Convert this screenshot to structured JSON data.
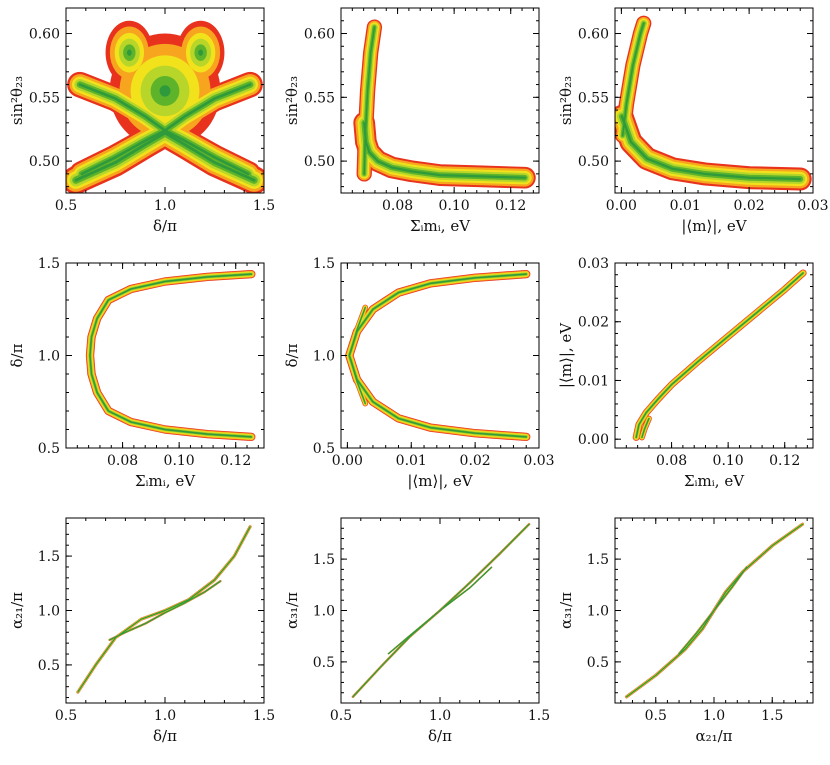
{
  "figure": {
    "description_colors": {
      "outer": "#e8321e",
      "mid1": "#f7a51f",
      "mid2": "#f2e21b",
      "inner": "#b8d62a",
      "core": "#5db42a",
      "center": "#2f9a3c"
    }
  },
  "chart_data": [
    {
      "type": "density",
      "id": "p11",
      "xlabel": "δ/π",
      "ylabel": "sin²θ₂₃",
      "xlim": [
        0.5,
        1.5
      ],
      "ylim": [
        0.475,
        0.62
      ],
      "xticks": [
        0.5,
        1.0,
        1.5
      ],
      "yticks": [
        0.5,
        0.55,
        0.6
      ],
      "xtick_labels": [
        "0.5",
        "1.0",
        "1.5"
      ],
      "ytick_labels": [
        "0.50",
        "0.55",
        "0.60"
      ],
      "bands": [
        {
          "pts": [
            [
              0.55,
              0.485
            ],
            [
              0.75,
              0.499
            ],
            [
              0.9,
              0.513
            ],
            [
              1.0,
              0.522
            ],
            [
              1.1,
              0.513
            ],
            [
              1.25,
              0.499
            ],
            [
              1.45,
              0.485
            ]
          ],
          "w": 0.022
        },
        {
          "pts": [
            [
              0.58,
              0.49
            ],
            [
              0.75,
              0.503
            ],
            [
              0.9,
              0.516
            ],
            [
              1.0,
              0.524
            ],
            [
              1.1,
              0.535
            ],
            [
              1.25,
              0.549
            ],
            [
              1.43,
              0.56
            ]
          ],
          "w": 0.02
        },
        {
          "pts": [
            [
              0.57,
              0.56
            ],
            [
              0.75,
              0.549
            ],
            [
              0.9,
              0.535
            ],
            [
              1.0,
              0.524
            ],
            [
              1.1,
              0.516
            ],
            [
              1.25,
              0.503
            ],
            [
              1.42,
              0.49
            ]
          ],
          "w": 0.02
        }
      ],
      "blobs": [
        {
          "cx": 1.0,
          "cy": 0.555,
          "rx": 0.28,
          "ry": 0.045
        },
        {
          "cx": 0.82,
          "cy": 0.585,
          "rx": 0.12,
          "ry": 0.025
        },
        {
          "cx": 1.18,
          "cy": 0.585,
          "rx": 0.12,
          "ry": 0.025
        }
      ]
    },
    {
      "type": "density",
      "id": "p12",
      "xlabel": "Σ_i m_i, eV",
      "ylabel": "sin²θ₂₃",
      "xlim": [
        0.06,
        0.13
      ],
      "ylim": [
        0.475,
        0.62
      ],
      "xticks": [
        0.08,
        0.1,
        0.12
      ],
      "yticks": [
        0.5,
        0.55,
        0.6
      ],
      "xtick_labels": [
        "0.08",
        "0.10",
        "0.12"
      ],
      "ytick_labels": [
        "0.50",
        "0.55",
        "0.60"
      ],
      "bands": [
        {
          "pts": [
            [
              0.0682,
              0.49
            ],
            [
              0.0686,
              0.52
            ],
            [
              0.0694,
              0.555
            ],
            [
              0.0705,
              0.585
            ],
            [
              0.0718,
              0.605
            ]
          ],
          "w": 0.012
        },
        {
          "pts": [
            [
              0.0682,
              0.53
            ],
            [
              0.0688,
              0.515
            ],
            [
              0.07,
              0.507
            ],
            [
              0.073,
              0.5
            ],
            [
              0.078,
              0.495
            ],
            [
              0.085,
              0.492
            ],
            [
              0.095,
              0.489
            ],
            [
              0.11,
              0.488
            ],
            [
              0.125,
              0.487
            ]
          ],
          "w": 0.017
        }
      ],
      "blobs": []
    },
    {
      "type": "density",
      "id": "p13",
      "xlabel": "|⟨m⟩|, eV",
      "ylabel": "sin²θ₂₃",
      "xlim": [
        -0.001,
        0.03
      ],
      "ylim": [
        0.475,
        0.62
      ],
      "xticks": [
        0.0,
        0.01,
        0.02,
        0.03
      ],
      "yticks": [
        0.5,
        0.55,
        0.6
      ],
      "xtick_labels": [
        "0.00",
        "0.01",
        "0.02",
        "0.03"
      ],
      "ytick_labels": [
        "0.50",
        "0.55",
        "0.60"
      ],
      "bands": [
        {
          "pts": [
            [
              0.0002,
              0.52
            ],
            [
              0.0008,
              0.545
            ],
            [
              0.0018,
              0.575
            ],
            [
              0.003,
              0.6
            ],
            [
              0.0035,
              0.608
            ]
          ],
          "w": 0.012
        },
        {
          "pts": [
            [
              0.0001,
              0.535
            ],
            [
              0.0015,
              0.515
            ],
            [
              0.004,
              0.502
            ],
            [
              0.008,
              0.494
            ],
            [
              0.013,
              0.49
            ],
            [
              0.02,
              0.487
            ],
            [
              0.028,
              0.486
            ]
          ],
          "w": 0.018
        }
      ],
      "blobs": []
    },
    {
      "type": "density",
      "id": "p21",
      "xlabel": "Σ_i m_i, eV",
      "ylabel": "δ/π",
      "xlim": [
        0.06,
        0.13
      ],
      "ylim": [
        0.5,
        1.5
      ],
      "xticks": [
        0.08,
        0.1,
        0.12
      ],
      "yticks": [
        0.5,
        1.0,
        1.5
      ],
      "xtick_labels": [
        "0.08",
        "0.10",
        "0.12"
      ],
      "ytick_labels": [
        "0.5",
        "1.0",
        "1.5"
      ],
      "bands": [
        {
          "pts": [
            [
              0.1255,
              1.44
            ],
            [
              0.11,
              1.425
            ],
            [
              0.095,
              1.4
            ],
            [
              0.083,
              1.36
            ],
            [
              0.075,
              1.3
            ],
            [
              0.071,
              1.2
            ],
            [
              0.069,
              1.1
            ],
            [
              0.0685,
              1.0
            ],
            [
              0.069,
              0.9
            ],
            [
              0.071,
              0.8
            ],
            [
              0.075,
              0.7
            ],
            [
              0.083,
              0.64
            ],
            [
              0.095,
              0.6
            ],
            [
              0.11,
              0.575
            ],
            [
              0.1255,
              0.56
            ]
          ],
          "w": 0.045
        }
      ],
      "blobs": []
    },
    {
      "type": "density",
      "id": "p22",
      "xlabel": "|⟨m⟩|, eV",
      "ylabel": "δ/π",
      "xlim": [
        -0.001,
        0.03
      ],
      "ylim": [
        0.5,
        1.5
      ],
      "xticks": [
        0.0,
        0.01,
        0.02,
        0.03
      ],
      "yticks": [
        0.5,
        1.0,
        1.5
      ],
      "xtick_labels": [
        "0.00",
        "0.01",
        "0.02",
        "0.03"
      ],
      "ytick_labels": [
        "0.5",
        "1.0",
        "1.5"
      ],
      "bands": [
        {
          "pts": [
            [
              0.028,
              1.44
            ],
            [
              0.02,
              1.42
            ],
            [
              0.013,
              1.39
            ],
            [
              0.008,
              1.34
            ],
            [
              0.004,
              1.25
            ],
            [
              0.0015,
              1.13
            ],
            [
              0.0003,
              1.0
            ],
            [
              0.0015,
              0.87
            ],
            [
              0.004,
              0.75
            ],
            [
              0.008,
              0.66
            ],
            [
              0.013,
              0.61
            ],
            [
              0.02,
              0.58
            ],
            [
              0.028,
              0.56
            ]
          ],
          "w": 0.045
        },
        {
          "pts": [
            [
              0.0005,
              1.02
            ],
            [
              0.0015,
              1.14
            ],
            [
              0.0028,
              1.26
            ]
          ],
          "w": 0.03
        },
        {
          "pts": [
            [
              0.0005,
              0.98
            ],
            [
              0.0015,
              0.86
            ],
            [
              0.0028,
              0.74
            ]
          ],
          "w": 0.03
        }
      ],
      "blobs": []
    },
    {
      "type": "density",
      "id": "p23",
      "xlabel": "Σ_i m_i, eV",
      "ylabel": "|⟨m⟩|, eV",
      "xlim": [
        0.06,
        0.13
      ],
      "ylim": [
        -0.0015,
        0.03
      ],
      "xticks": [
        0.08,
        0.1,
        0.12
      ],
      "yticks": [
        0.0,
        0.01,
        0.02,
        0.03
      ],
      "xtick_labels": [
        "0.08",
        "0.10",
        "0.12"
      ],
      "ytick_labels": [
        "0.00",
        "0.01",
        "0.02",
        "0.03"
      ],
      "bands": [
        {
          "pts": [
            [
              0.0675,
              0.0003
            ],
            [
              0.0685,
              0.0025
            ],
            [
              0.071,
              0.0045
            ],
            [
              0.075,
              0.0067
            ],
            [
              0.08,
              0.0093
            ],
            [
              0.09,
              0.0135
            ],
            [
              0.1,
              0.0175
            ],
            [
              0.11,
              0.0215
            ],
            [
              0.12,
              0.0255
            ],
            [
              0.1265,
              0.0283
            ]
          ],
          "w": 0.0012
        },
        {
          "pts": [
            [
              0.0695,
              0.0003
            ],
            [
              0.0705,
              0.0018
            ],
            [
              0.072,
              0.0035
            ]
          ],
          "w": 0.001
        }
      ],
      "blobs": []
    },
    {
      "type": "density",
      "id": "p31",
      "xlabel": "δ/π",
      "ylabel": "α₂₁/π",
      "xlim": [
        0.5,
        1.5
      ],
      "ylim": [
        0.15,
        1.85
      ],
      "xticks": [
        0.5,
        1.0,
        1.5
      ],
      "yticks": [
        0.5,
        1.0,
        1.5
      ],
      "xtick_labels": [
        "0.5",
        "1.0",
        "1.5"
      ],
      "ytick_labels": [
        "0.5",
        "1.0",
        "1.5"
      ],
      "bands": [
        {
          "pts": [
            [
              0.56,
              0.25
            ],
            [
              0.65,
              0.5
            ],
            [
              0.75,
              0.75
            ],
            [
              0.88,
              0.92
            ],
            [
              1.0,
              1.0
            ],
            [
              1.12,
              1.1
            ],
            [
              1.25,
              1.28
            ],
            [
              1.35,
              1.5
            ],
            [
              1.43,
              1.77
            ]
          ],
          "w": 0.028
        },
        {
          "pts": [
            [
              0.72,
              0.73
            ],
            [
              0.8,
              0.8
            ],
            [
              0.9,
              0.88
            ],
            [
              1.0,
              0.98
            ],
            [
              1.1,
              1.07
            ],
            [
              1.2,
              1.17
            ],
            [
              1.28,
              1.27
            ]
          ],
          "w": 0.02
        }
      ],
      "blobs": []
    },
    {
      "type": "density",
      "id": "p32",
      "xlabel": "δ/π",
      "ylabel": "α₃₁/π",
      "xlim": [
        0.5,
        1.5
      ],
      "ylim": [
        0.1,
        1.9
      ],
      "xticks": [
        0.5,
        1.0,
        1.5
      ],
      "yticks": [
        0.5,
        1.0,
        1.5
      ],
      "xtick_labels": [
        "0.5",
        "1.0",
        "1.5"
      ],
      "ytick_labels": [
        "0.5",
        "1.0",
        "1.5"
      ],
      "bands": [
        {
          "pts": [
            [
              0.56,
              0.16
            ],
            [
              0.7,
              0.45
            ],
            [
              0.85,
              0.75
            ],
            [
              1.0,
              1.0
            ],
            [
              1.15,
              1.27
            ],
            [
              1.3,
              1.55
            ],
            [
              1.45,
              1.84
            ]
          ],
          "w": 0.022
        },
        {
          "pts": [
            [
              0.74,
              0.58
            ],
            [
              0.85,
              0.76
            ],
            [
              1.0,
              1.0
            ],
            [
              1.15,
              1.22
            ],
            [
              1.26,
              1.42
            ]
          ],
          "w": 0.016
        }
      ],
      "blobs": []
    },
    {
      "type": "density",
      "id": "p33",
      "xlabel": "α₂₁/π",
      "ylabel": "α₃₁/π",
      "xlim": [
        0.15,
        1.85
      ],
      "ylim": [
        0.1,
        1.9
      ],
      "xticks": [
        0.5,
        1.0,
        1.5
      ],
      "yticks": [
        0.5,
        1.0,
        1.5
      ],
      "xtick_labels": [
        "0.5",
        "1.0",
        "1.5"
      ],
      "ytick_labels": [
        "0.5",
        "1.0",
        "1.5"
      ],
      "bands": [
        {
          "pts": [
            [
              0.25,
              0.16
            ],
            [
              0.5,
              0.37
            ],
            [
              0.75,
              0.62
            ],
            [
              0.9,
              0.82
            ],
            [
              1.0,
              1.0
            ],
            [
              1.1,
              1.18
            ],
            [
              1.25,
              1.38
            ],
            [
              1.5,
              1.63
            ],
            [
              1.76,
              1.84
            ]
          ],
          "w": 0.03
        },
        {
          "pts": [
            [
              0.7,
              0.58
            ],
            [
              0.85,
              0.78
            ],
            [
              1.0,
              1.0
            ],
            [
              1.15,
              1.22
            ],
            [
              1.28,
              1.42
            ]
          ],
          "w": 0.022
        }
      ],
      "blobs": []
    }
  ]
}
